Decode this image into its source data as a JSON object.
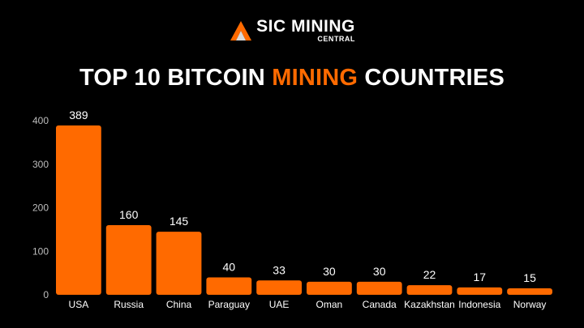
{
  "brand": {
    "logo_icon": "pickaxe-triangle-icon",
    "name_main_rest": "SIC MINING",
    "name_sub": "CENTRAL",
    "accent_color": "#ff6a00"
  },
  "title": {
    "part1": "TOP 10 BITCOIN ",
    "accent": "MINING",
    "part2": " COUNTRIES"
  },
  "chart_data": {
    "type": "bar",
    "title": "TOP 10 BITCOIN MINING COUNTRIES",
    "xlabel": "",
    "ylabel": "",
    "ylim": [
      0,
      400
    ],
    "yticks": [
      0,
      100,
      200,
      300,
      400
    ],
    "grid": false,
    "bar_color": "#ff6a00",
    "categories": [
      "USA",
      "Russia",
      "China",
      "Paraguay",
      "UAE",
      "Oman",
      "Canada",
      "Kazakhstan",
      "Indonesia",
      "Norway"
    ],
    "values": [
      389,
      160,
      145,
      40,
      33,
      30,
      30,
      22,
      17,
      15
    ]
  }
}
